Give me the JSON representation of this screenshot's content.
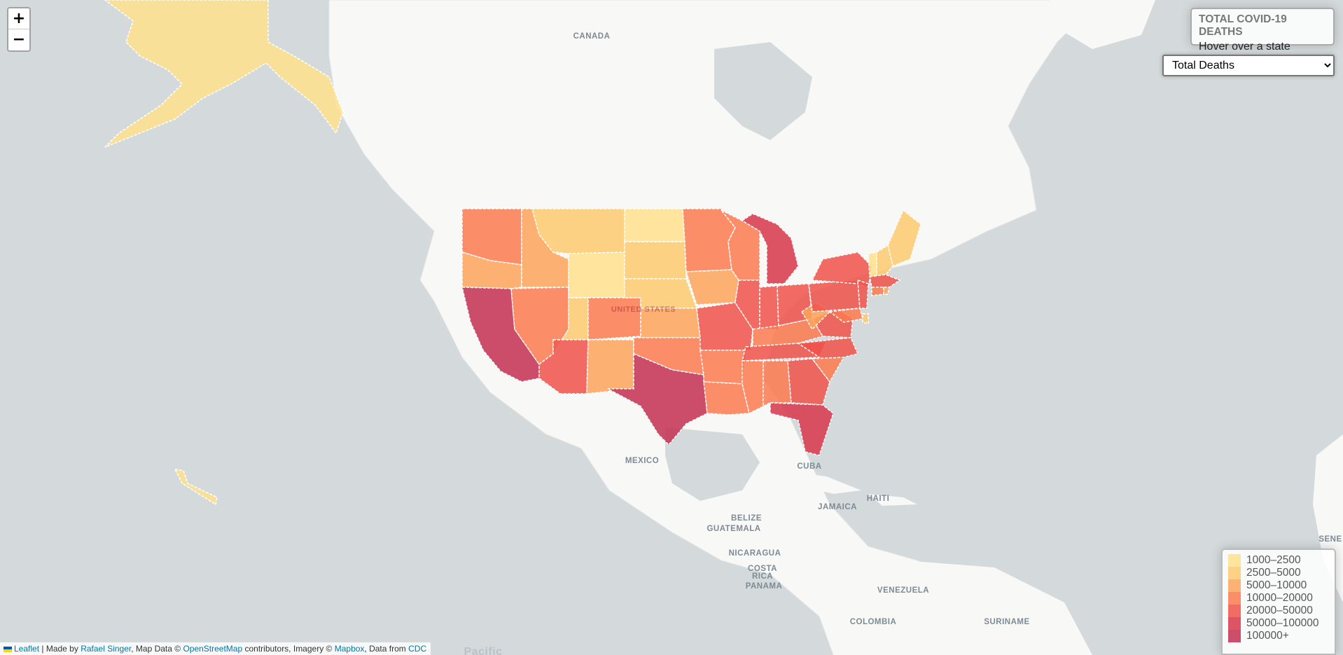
{
  "map": {
    "place_labels": [
      {
        "text": "CANADA"
      },
      {
        "text": "UNITED STATES"
      },
      {
        "text": "MEXICO"
      },
      {
        "text": "CUBA"
      },
      {
        "text": "HAITI"
      },
      {
        "text": "JAMAICA"
      },
      {
        "text": "BELIZE"
      },
      {
        "text": "GUATEMALA"
      },
      {
        "text": "NICARAGUA"
      },
      {
        "text": "COSTA"
      },
      {
        "text": "RICA"
      },
      {
        "text": "PANAMA"
      },
      {
        "text": "VENEZUELA"
      },
      {
        "text": "COLOMBIA"
      },
      {
        "text": "SURINAME"
      },
      {
        "text": "SENE"
      },
      {
        "text": "Pacific"
      }
    ],
    "states": [
      {
        "id": "AK",
        "bin": 0
      },
      {
        "id": "HI",
        "bin": 0
      },
      {
        "id": "WA",
        "bin": 3
      },
      {
        "id": "OR",
        "bin": 2
      },
      {
        "id": "CA",
        "bin": 6
      },
      {
        "id": "ID",
        "bin": 2
      },
      {
        "id": "NV",
        "bin": 3
      },
      {
        "id": "MT",
        "bin": 1
      },
      {
        "id": "WY",
        "bin": 0
      },
      {
        "id": "UT",
        "bin": 1
      },
      {
        "id": "AZ",
        "bin": 4
      },
      {
        "id": "CO",
        "bin": 3
      },
      {
        "id": "NM",
        "bin": 2
      },
      {
        "id": "ND",
        "bin": 0
      },
      {
        "id": "SD",
        "bin": 1
      },
      {
        "id": "NE",
        "bin": 1
      },
      {
        "id": "KS",
        "bin": 2
      },
      {
        "id": "OK",
        "bin": 3
      },
      {
        "id": "TX",
        "bin": 6
      },
      {
        "id": "MN",
        "bin": 3
      },
      {
        "id": "IA",
        "bin": 2
      },
      {
        "id": "MO",
        "bin": 4
      },
      {
        "id": "AR",
        "bin": 3
      },
      {
        "id": "LA",
        "bin": 3
      },
      {
        "id": "WI",
        "bin": 3
      },
      {
        "id": "IL",
        "bin": 4
      },
      {
        "id": "MI",
        "bin": 5
      },
      {
        "id": "IN",
        "bin": 4
      },
      {
        "id": "OH",
        "bin": 4
      },
      {
        "id": "KY",
        "bin": 3
      },
      {
        "id": "TN",
        "bin": 4
      },
      {
        "id": "MS",
        "bin": 3
      },
      {
        "id": "AL",
        "bin": 3
      },
      {
        "id": "GA",
        "bin": 4
      },
      {
        "id": "FL",
        "bin": 5
      },
      {
        "id": "SC",
        "bin": 3
      },
      {
        "id": "NC",
        "bin": 4
      },
      {
        "id": "VA",
        "bin": 4
      },
      {
        "id": "WV",
        "bin": 2
      },
      {
        "id": "PA",
        "bin": 4
      },
      {
        "id": "NY",
        "bin": 4
      },
      {
        "id": "MD",
        "bin": 3
      },
      {
        "id": "NJ",
        "bin": 4
      },
      {
        "id": "ME",
        "bin": 1
      },
      {
        "id": "VT",
        "bin": 0
      },
      {
        "id": "NH",
        "bin": 1
      },
      {
        "id": "MA",
        "bin": 4
      },
      {
        "id": "CT",
        "bin": 3
      },
      {
        "id": "RI",
        "bin": 2
      },
      {
        "id": "DE",
        "bin": 1
      }
    ]
  },
  "zoom": {
    "in_label": "+",
    "out_label": "−"
  },
  "info": {
    "title": "TOTAL COVID-19 DEATHS",
    "subtitle": "Hover over a state"
  },
  "metric_select": {
    "selected": "Total Deaths"
  },
  "legend": {
    "items": [
      {
        "label": "1000–2500",
        "color": "#ffe08c"
      },
      {
        "label": "2500–5000",
        "color": "#feca6e"
      },
      {
        "label": "5000–10000",
        "color": "#fda55c"
      },
      {
        "label": "10000–20000",
        "color": "#fc7a4f"
      },
      {
        "label": "20000–50000",
        "color": "#f0524a"
      },
      {
        "label": "50000–100000",
        "color": "#d7364a"
      },
      {
        "label": "100000+",
        "color": "#c32f50"
      }
    ]
  },
  "attribution": {
    "leaflet": "Leaflet",
    "made_by_prefix": " | Made by ",
    "author": "Rafael Singer",
    "map_data_prefix": ", Map Data © ",
    "osm": "OpenStreetMap",
    "contrib": " contributors, Imagery © ",
    "mapbox": "Mapbox",
    "data_from": ", Data from ",
    "cdc": "CDC"
  },
  "colors": {
    "water": "#d4dadc",
    "land": "#f8f8f7",
    "border": "#ffffff"
  }
}
